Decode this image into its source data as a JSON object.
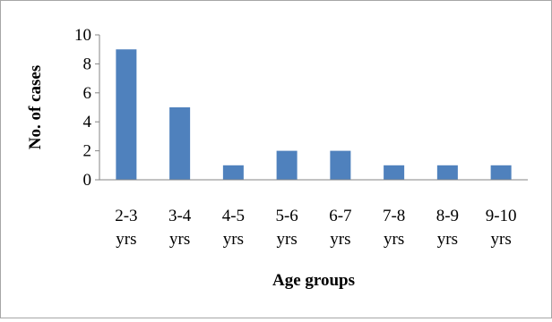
{
  "chart_data": {
    "type": "bar",
    "title": "",
    "xlabel": "Age groups",
    "ylabel": "No. of cases",
    "ylim": [
      0,
      10
    ],
    "yticks": [
      0,
      2,
      4,
      6,
      8,
      10
    ],
    "grid": false,
    "legend": "none",
    "categories": [
      {
        "line1": "2-3",
        "line2": "yrs"
      },
      {
        "line1": "3-4",
        "line2": "yrs"
      },
      {
        "line1": "4-5",
        "line2": "yrs"
      },
      {
        "line1": "5-6",
        "line2": "yrs"
      },
      {
        "line1": "6-7",
        "line2": "yrs"
      },
      {
        "line1": "7-8",
        "line2": "yrs"
      },
      {
        "line1": "8-9",
        "line2": "yrs"
      },
      {
        "line1": "9-10",
        "line2": "yrs"
      }
    ],
    "values": [
      9,
      5,
      1,
      2,
      2,
      1,
      1,
      1
    ],
    "colors": {
      "bar": "#4f81bd",
      "axis": "#868686",
      "border": "#a6a6a6"
    }
  }
}
